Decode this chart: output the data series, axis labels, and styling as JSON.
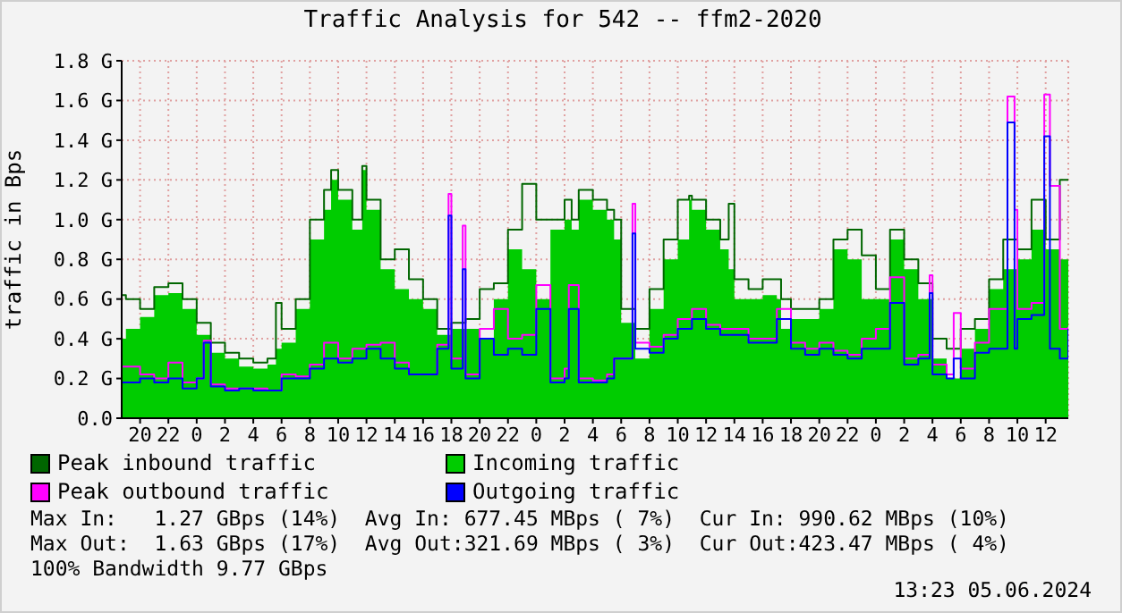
{
  "chart_data": {
    "type": "area",
    "title": "Traffic Analysis for 542 -- ffm2-2020",
    "ylabel": "traffic in Bps",
    "xlim": [
      "2024-06-02T18:42",
      "2024-06-05T13:36"
    ],
    "xticks": [
      {
        "value": "2024-06-02T20:00",
        "label": "20"
      },
      {
        "value": "2024-06-02T22:00",
        "label": "22"
      },
      {
        "value": "2024-06-03T00:00",
        "label": "0"
      },
      {
        "value": "2024-06-03T02:00",
        "label": "2"
      },
      {
        "value": "2024-06-03T04:00",
        "label": "4"
      },
      {
        "value": "2024-06-03T06:00",
        "label": "6"
      },
      {
        "value": "2024-06-03T08:00",
        "label": "8"
      },
      {
        "value": "2024-06-03T10:00",
        "label": "10"
      },
      {
        "value": "2024-06-03T12:00",
        "label": "12"
      },
      {
        "value": "2024-06-03T14:00",
        "label": "14"
      },
      {
        "value": "2024-06-03T16:00",
        "label": "16"
      },
      {
        "value": "2024-06-03T18:00",
        "label": "18"
      },
      {
        "value": "2024-06-03T20:00",
        "label": "20"
      },
      {
        "value": "2024-06-03T22:00",
        "label": "22"
      },
      {
        "value": "2024-06-04T00:00",
        "label": "0"
      },
      {
        "value": "2024-06-04T02:00",
        "label": "2"
      },
      {
        "value": "2024-06-04T04:00",
        "label": "4"
      },
      {
        "value": "2024-06-04T06:00",
        "label": "6"
      },
      {
        "value": "2024-06-04T08:00",
        "label": "8"
      },
      {
        "value": "2024-06-04T10:00",
        "label": "10"
      },
      {
        "value": "2024-06-04T12:00",
        "label": "12"
      },
      {
        "value": "2024-06-04T14:00",
        "label": "14"
      },
      {
        "value": "2024-06-04T16:00",
        "label": "16"
      },
      {
        "value": "2024-06-04T18:00",
        "label": "18"
      },
      {
        "value": "2024-06-04T20:00",
        "label": "20"
      },
      {
        "value": "2024-06-04T22:00",
        "label": "22"
      },
      {
        "value": "2024-06-05T00:00",
        "label": "0"
      },
      {
        "value": "2024-06-05T02:00",
        "label": "2"
      },
      {
        "value": "2024-06-05T04:00",
        "label": "4"
      },
      {
        "value": "2024-06-05T06:00",
        "label": "6"
      },
      {
        "value": "2024-06-05T08:00",
        "label": "8"
      },
      {
        "value": "2024-06-05T10:00",
        "label": "10"
      },
      {
        "value": "2024-06-05T12:00",
        "label": "12"
      }
    ],
    "ylim": [
      0,
      1.8
    ],
    "yticks": [
      {
        "value": 0,
        "label": "0.0"
      },
      {
        "value": 0.2,
        "label": "0.2 G"
      },
      {
        "value": 0.4,
        "label": "0.4 G"
      },
      {
        "value": 0.6,
        "label": "0.6 G"
      },
      {
        "value": 0.8,
        "label": "0.8 G"
      },
      {
        "value": 1.0,
        "label": "1.0 G"
      },
      {
        "value": 1.2,
        "label": "1.2 G"
      },
      {
        "value": 1.4,
        "label": "1.4 G"
      },
      {
        "value": 1.6,
        "label": "1.6 G"
      },
      {
        "value": 1.8,
        "label": "1.8 G"
      }
    ],
    "grid": true,
    "legend": "bottom",
    "series": [
      {
        "name": "Incoming traffic",
        "type": "area",
        "color": "#00cc00",
        "x": [
          "2024-06-02T18:42",
          "2024-06-02T19:00",
          "2024-06-02T20:00",
          "2024-06-02T21:00",
          "2024-06-02T22:00",
          "2024-06-02T23:00",
          "2024-06-03T00:00",
          "2024-06-03T01:00",
          "2024-06-03T02:00",
          "2024-06-03T03:00",
          "2024-06-03T04:00",
          "2024-06-03T05:00",
          "2024-06-03T05:36",
          "2024-06-03T06:00",
          "2024-06-03T07:00",
          "2024-06-03T08:00",
          "2024-06-03T09:00",
          "2024-06-03T09:30",
          "2024-06-03T10:00",
          "2024-06-03T11:00",
          "2024-06-03T11:42",
          "2024-06-03T12:00",
          "2024-06-03T13:00",
          "2024-06-03T14:00",
          "2024-06-03T15:00",
          "2024-06-03T16:00",
          "2024-06-03T17:00",
          "2024-06-03T18:00",
          "2024-06-03T19:00",
          "2024-06-03T20:00",
          "2024-06-03T21:00",
          "2024-06-03T22:00",
          "2024-06-03T23:00",
          "2024-06-04T00:00",
          "2024-06-04T01:00",
          "2024-06-04T02:00",
          "2024-06-04T02:30",
          "2024-06-04T03:00",
          "2024-06-04T04:00",
          "2024-06-04T05:00",
          "2024-06-04T05:30",
          "2024-06-04T06:00",
          "2024-06-04T07:00",
          "2024-06-04T08:00",
          "2024-06-04T09:00",
          "2024-06-04T10:00",
          "2024-06-04T10:48",
          "2024-06-04T11:00",
          "2024-06-04T12:00",
          "2024-06-04T13:00",
          "2024-06-04T13:36",
          "2024-06-04T14:00",
          "2024-06-04T15:00",
          "2024-06-04T16:00",
          "2024-06-04T17:00",
          "2024-06-04T17:18",
          "2024-06-04T18:00",
          "2024-06-04T19:00",
          "2024-06-04T20:00",
          "2024-06-04T21:00",
          "2024-06-04T22:00",
          "2024-06-04T23:00",
          "2024-06-05T00:00",
          "2024-06-05T01:00",
          "2024-06-05T02:00",
          "2024-06-05T03:00",
          "2024-06-05T04:00",
          "2024-06-05T05:00",
          "2024-06-05T06:00",
          "2024-06-05T07:00",
          "2024-06-05T08:00",
          "2024-06-05T09:00",
          "2024-06-05T10:00",
          "2024-06-05T11:00",
          "2024-06-05T12:00",
          "2024-06-05T13:00",
          "2024-06-05T13:36"
        ],
        "values": [
          0.4,
          0.45,
          0.51,
          0.62,
          0.63,
          0.55,
          0.42,
          0.33,
          0.3,
          0.26,
          0.25,
          0.27,
          0.35,
          0.38,
          0.55,
          0.9,
          1.05,
          1.2,
          1.1,
          0.95,
          1.25,
          1.05,
          0.75,
          0.65,
          0.6,
          0.55,
          0.42,
          0.45,
          0.45,
          0.4,
          0.6,
          0.85,
          0.75,
          0.6,
          0.95,
          1.0,
          0.95,
          1.1,
          1.05,
          1.0,
          0.9,
          0.48,
          0.3,
          0.55,
          0.8,
          0.9,
          1.1,
          1.05,
          0.95,
          0.85,
          0.75,
          0.6,
          0.6,
          0.62,
          0.6,
          0.45,
          0.5,
          0.5,
          0.55,
          0.85,
          0.8,
          0.6,
          0.6,
          0.9,
          0.75,
          0.6,
          0.3,
          0.2,
          0.35,
          0.45,
          0.65,
          0.75,
          0.8,
          0.95,
          0.85,
          0.8,
          0.8
        ]
      },
      {
        "name": "Peak inbound traffic",
        "type": "step",
        "color": "#006600",
        "x": [
          "2024-06-02T18:42",
          "2024-06-02T19:00",
          "2024-06-02T20:00",
          "2024-06-02T21:00",
          "2024-06-02T22:00",
          "2024-06-02T23:00",
          "2024-06-03T00:00",
          "2024-06-03T01:00",
          "2024-06-03T02:00",
          "2024-06-03T03:00",
          "2024-06-03T04:00",
          "2024-06-03T05:00",
          "2024-06-03T05:36",
          "2024-06-03T06:00",
          "2024-06-03T07:00",
          "2024-06-03T08:00",
          "2024-06-03T09:00",
          "2024-06-03T09:30",
          "2024-06-03T10:00",
          "2024-06-03T11:00",
          "2024-06-03T11:42",
          "2024-06-03T12:00",
          "2024-06-03T13:00",
          "2024-06-03T14:00",
          "2024-06-03T15:00",
          "2024-06-03T16:00",
          "2024-06-03T17:00",
          "2024-06-03T18:00",
          "2024-06-03T19:00",
          "2024-06-03T20:00",
          "2024-06-03T21:00",
          "2024-06-03T22:00",
          "2024-06-03T23:00",
          "2024-06-04T00:00",
          "2024-06-04T01:00",
          "2024-06-04T02:00",
          "2024-06-04T02:30",
          "2024-06-04T03:00",
          "2024-06-04T04:00",
          "2024-06-04T05:00",
          "2024-06-04T05:30",
          "2024-06-04T06:00",
          "2024-06-04T07:00",
          "2024-06-04T08:00",
          "2024-06-04T09:00",
          "2024-06-04T10:00",
          "2024-06-04T10:48",
          "2024-06-04T11:00",
          "2024-06-04T12:00",
          "2024-06-04T13:00",
          "2024-06-04T13:36",
          "2024-06-04T14:00",
          "2024-06-04T15:00",
          "2024-06-04T16:00",
          "2024-06-04T17:00",
          "2024-06-04T17:18",
          "2024-06-04T18:00",
          "2024-06-04T19:00",
          "2024-06-04T20:00",
          "2024-06-04T21:00",
          "2024-06-04T22:00",
          "2024-06-04T23:00",
          "2024-06-05T00:00",
          "2024-06-05T01:00",
          "2024-06-05T02:00",
          "2024-06-05T03:00",
          "2024-06-05T04:00",
          "2024-06-05T05:00",
          "2024-06-05T06:00",
          "2024-06-05T07:00",
          "2024-06-05T08:00",
          "2024-06-05T09:00",
          "2024-06-05T10:00",
          "2024-06-05T11:00",
          "2024-06-05T12:00",
          "2024-06-05T13:00",
          "2024-06-05T13:36"
        ],
        "values": [
          0.62,
          0.6,
          0.55,
          0.66,
          0.68,
          0.6,
          0.48,
          0.38,
          0.33,
          0.3,
          0.28,
          0.3,
          0.58,
          0.45,
          0.6,
          1.0,
          1.15,
          1.25,
          1.15,
          1.0,
          1.27,
          1.1,
          0.8,
          0.85,
          0.7,
          0.6,
          0.45,
          0.48,
          0.5,
          0.65,
          0.68,
          0.95,
          1.18,
          1.0,
          1.0,
          1.1,
          1.0,
          1.15,
          1.1,
          1.05,
          1.0,
          0.55,
          0.45,
          0.65,
          0.9,
          1.1,
          1.12,
          1.1,
          1.0,
          0.9,
          1.08,
          0.7,
          0.65,
          0.7,
          0.7,
          0.6,
          0.55,
          0.55,
          0.6,
          0.9,
          0.95,
          0.82,
          0.65,
          0.95,
          0.8,
          0.68,
          0.4,
          0.35,
          0.45,
          0.5,
          0.7,
          0.9,
          0.85,
          1.1,
          0.9,
          1.2,
          1.2
        ]
      },
      {
        "name": "Peak outbound traffic",
        "type": "step",
        "color": "#ff00ff",
        "x": [
          "2024-06-02T18:42",
          "2024-06-02T20:00",
          "2024-06-02T21:00",
          "2024-06-02T22:00",
          "2024-06-02T23:00",
          "2024-06-03T00:00",
          "2024-06-03T00:30",
          "2024-06-03T01:00",
          "2024-06-03T02:00",
          "2024-06-03T03:00",
          "2024-06-03T04:00",
          "2024-06-03T05:00",
          "2024-06-03T06:00",
          "2024-06-03T07:00",
          "2024-06-03T08:00",
          "2024-06-03T09:00",
          "2024-06-03T10:00",
          "2024-06-03T11:00",
          "2024-06-03T12:00",
          "2024-06-03T13:00",
          "2024-06-03T14:00",
          "2024-06-03T15:00",
          "2024-06-03T16:00",
          "2024-06-03T17:00",
          "2024-06-03T17:48",
          "2024-06-03T18:00",
          "2024-06-03T18:48",
          "2024-06-03T19:00",
          "2024-06-03T20:00",
          "2024-06-03T21:00",
          "2024-06-03T22:00",
          "2024-06-03T23:00",
          "2024-06-04T00:00",
          "2024-06-04T01:00",
          "2024-06-04T02:00",
          "2024-06-04T02:18",
          "2024-06-04T03:00",
          "2024-06-04T04:00",
          "2024-06-04T05:00",
          "2024-06-04T05:30",
          "2024-06-04T06:48",
          "2024-06-04T07:00",
          "2024-06-04T08:00",
          "2024-06-04T09:00",
          "2024-06-04T10:00",
          "2024-06-04T11:00",
          "2024-06-04T12:00",
          "2024-06-04T13:00",
          "2024-06-04T14:00",
          "2024-06-04T15:00",
          "2024-06-04T16:00",
          "2024-06-04T17:00",
          "2024-06-04T18:00",
          "2024-06-04T19:00",
          "2024-06-04T20:00",
          "2024-06-04T21:00",
          "2024-06-04T22:00",
          "2024-06-04T23:00",
          "2024-06-05T00:00",
          "2024-06-05T01:00",
          "2024-06-05T02:00",
          "2024-06-05T03:00",
          "2024-06-05T03:48",
          "2024-06-05T04:00",
          "2024-06-05T05:00",
          "2024-06-05T05:30",
          "2024-06-05T06:00",
          "2024-06-05T07:00",
          "2024-06-05T08:00",
          "2024-06-05T09:18",
          "2024-06-05T09:48",
          "2024-06-05T10:00",
          "2024-06-05T11:00",
          "2024-06-05T11:54",
          "2024-06-05T12:18",
          "2024-06-05T13:00",
          "2024-06-05T13:36"
        ],
        "values": [
          0.26,
          0.22,
          0.2,
          0.28,
          0.18,
          0.2,
          0.39,
          0.17,
          0.15,
          0.15,
          0.15,
          0.14,
          0.22,
          0.21,
          0.27,
          0.38,
          0.3,
          0.35,
          0.37,
          0.38,
          0.28,
          0.22,
          0.22,
          0.37,
          1.13,
          0.3,
          0.97,
          0.22,
          0.45,
          0.55,
          0.4,
          0.42,
          0.67,
          0.2,
          0.25,
          0.67,
          0.2,
          0.19,
          0.22,
          0.3,
          1.08,
          0.38,
          0.36,
          0.42,
          0.5,
          0.55,
          0.47,
          0.45,
          0.45,
          0.4,
          0.4,
          0.55,
          0.38,
          0.35,
          0.38,
          0.34,
          0.32,
          0.4,
          0.45,
          0.71,
          0.3,
          0.32,
          0.72,
          0.27,
          0.22,
          0.53,
          0.25,
          0.38,
          0.55,
          1.62,
          1.05,
          0.55,
          0.58,
          1.63,
          1.17,
          0.45,
          0.46
        ]
      },
      {
        "name": "Outgoing traffic",
        "type": "step",
        "color": "#0000ff",
        "x": [
          "2024-06-02T18:42",
          "2024-06-02T20:00",
          "2024-06-02T21:00",
          "2024-06-02T22:00",
          "2024-06-02T23:00",
          "2024-06-03T00:00",
          "2024-06-03T00:30",
          "2024-06-03T01:00",
          "2024-06-03T02:00",
          "2024-06-03T03:00",
          "2024-06-03T04:00",
          "2024-06-03T05:00",
          "2024-06-03T06:00",
          "2024-06-03T07:00",
          "2024-06-03T08:00",
          "2024-06-03T09:00",
          "2024-06-03T10:00",
          "2024-06-03T11:00",
          "2024-06-03T12:00",
          "2024-06-03T13:00",
          "2024-06-03T14:00",
          "2024-06-03T15:00",
          "2024-06-03T16:00",
          "2024-06-03T17:00",
          "2024-06-03T17:48",
          "2024-06-03T18:00",
          "2024-06-03T18:48",
          "2024-06-03T19:00",
          "2024-06-03T20:00",
          "2024-06-03T21:00",
          "2024-06-03T22:00",
          "2024-06-03T23:00",
          "2024-06-04T00:00",
          "2024-06-04T01:00",
          "2024-06-04T02:00",
          "2024-06-04T02:18",
          "2024-06-04T03:00",
          "2024-06-04T04:00",
          "2024-06-04T05:00",
          "2024-06-04T05:30",
          "2024-06-04T06:48",
          "2024-06-04T07:00",
          "2024-06-04T08:00",
          "2024-06-04T09:00",
          "2024-06-04T10:00",
          "2024-06-04T11:00",
          "2024-06-04T12:00",
          "2024-06-04T13:00",
          "2024-06-04T14:00",
          "2024-06-04T15:00",
          "2024-06-04T16:00",
          "2024-06-04T17:00",
          "2024-06-04T18:00",
          "2024-06-04T19:00",
          "2024-06-04T20:00",
          "2024-06-04T21:00",
          "2024-06-04T22:00",
          "2024-06-04T23:00",
          "2024-06-05T00:00",
          "2024-06-05T01:00",
          "2024-06-05T02:00",
          "2024-06-05T03:00",
          "2024-06-05T03:48",
          "2024-06-05T04:00",
          "2024-06-05T05:00",
          "2024-06-05T05:30",
          "2024-06-05T06:00",
          "2024-06-05T07:00",
          "2024-06-05T08:00",
          "2024-06-05T09:18",
          "2024-06-05T09:48",
          "2024-06-05T10:00",
          "2024-06-05T11:00",
          "2024-06-05T11:54",
          "2024-06-05T12:18",
          "2024-06-05T13:00",
          "2024-06-05T13:36"
        ],
        "values": [
          0.18,
          0.2,
          0.18,
          0.2,
          0.15,
          0.2,
          0.38,
          0.16,
          0.14,
          0.15,
          0.14,
          0.14,
          0.2,
          0.2,
          0.25,
          0.3,
          0.28,
          0.3,
          0.35,
          0.3,
          0.25,
          0.22,
          0.22,
          0.35,
          1.02,
          0.25,
          0.75,
          0.2,
          0.4,
          0.32,
          0.35,
          0.32,
          0.55,
          0.18,
          0.2,
          0.55,
          0.18,
          0.18,
          0.2,
          0.3,
          0.93,
          0.35,
          0.33,
          0.4,
          0.45,
          0.5,
          0.45,
          0.42,
          0.42,
          0.38,
          0.38,
          0.5,
          0.35,
          0.32,
          0.35,
          0.32,
          0.3,
          0.35,
          0.35,
          0.58,
          0.27,
          0.3,
          0.63,
          0.22,
          0.2,
          0.3,
          0.2,
          0.33,
          0.35,
          1.49,
          0.35,
          0.5,
          0.52,
          1.42,
          0.35,
          0.3,
          0.45
        ]
      }
    ],
    "annotations": [
      "Max In:   1.27 GBps (14%)  Avg In: 677.45 MBps ( 7%)  Cur In: 990.62 MBps (10%)",
      "Max Out:  1.63 GBps (17%)  Avg Out:321.69 MBps ( 3%)  Cur Out:423.47 MBps ( 4%)",
      "100% Bandwidth 9.77 GBps",
      "13:23 05.06.2024"
    ]
  }
}
